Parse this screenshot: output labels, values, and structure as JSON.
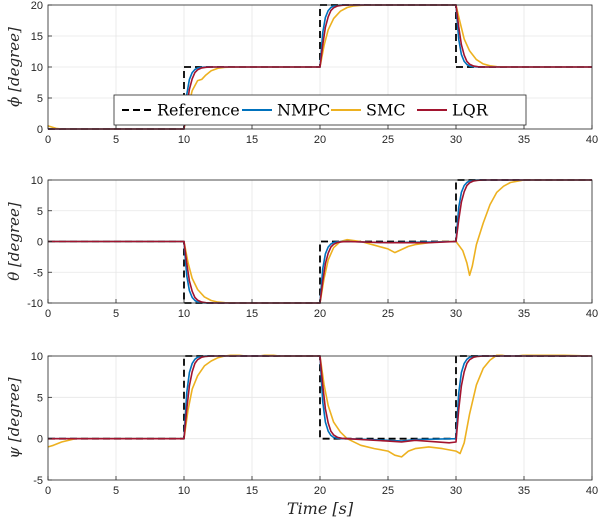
{
  "chart_data": [
    {
      "type": "line",
      "ylabel": "ϕ [degree]",
      "xlabel": "",
      "xlim": [
        0,
        40
      ],
      "ylim": [
        0,
        20
      ],
      "xticks": [
        0,
        5,
        10,
        15,
        20,
        25,
        30,
        35,
        40
      ],
      "yticks": [
        0,
        5,
        10,
        15,
        20
      ],
      "grid": true,
      "legend": {
        "placement": "bottom-center",
        "entries": [
          "Reference",
          "NMPC",
          "SMC",
          "LQR"
        ]
      },
      "series": [
        {
          "name": "Reference",
          "color": "#000000",
          "dash": true,
          "x": [
            0,
            10,
            10,
            20,
            20,
            30,
            30,
            40
          ],
          "y": [
            0,
            0,
            10,
            10,
            20,
            20,
            10,
            10
          ]
        },
        {
          "name": "NMPC",
          "color": "#0072BD",
          "x": [
            0,
            10,
            10.2,
            10.4,
            10.6,
            10.8,
            11,
            11.3,
            11.6,
            12,
            20,
            20.2,
            20.4,
            20.6,
            20.8,
            21,
            21.3,
            21.6,
            22,
            30,
            30.2,
            30.4,
            30.6,
            30.8,
            31,
            31.3,
            31.6,
            32,
            40
          ],
          "y": [
            0,
            0,
            5.5,
            8,
            9.1,
            9.6,
            9.85,
            9.95,
            10,
            10,
            10,
            15.5,
            18,
            19.1,
            19.6,
            19.85,
            19.95,
            20,
            20,
            20,
            14.5,
            12,
            10.9,
            10.4,
            10.15,
            10.05,
            10,
            10,
            10
          ]
        },
        {
          "name": "LQR",
          "color": "#A2142F",
          "x": [
            0,
            10,
            10.2,
            10.4,
            10.6,
            10.8,
            11,
            11.3,
            11.6,
            12,
            20,
            20.2,
            20.4,
            20.6,
            20.8,
            21,
            21.3,
            21.6,
            22,
            30,
            30.2,
            30.4,
            30.6,
            30.8,
            31,
            31.3,
            31.6,
            32,
            40
          ],
          "y": [
            0,
            0,
            3.5,
            6.4,
            8.1,
            9.1,
            9.55,
            9.85,
            9.95,
            10,
            10,
            13.5,
            16.4,
            18.1,
            19.1,
            19.55,
            19.85,
            19.95,
            20,
            20,
            16.5,
            13.6,
            11.9,
            10.9,
            10.45,
            10.15,
            10.05,
            10,
            10
          ]
        },
        {
          "name": "SMC",
          "color": "#EDB120",
          "x": [
            0,
            0.3,
            0.6,
            1,
            10,
            10.3,
            10.6,
            11,
            11.3,
            11.6,
            12,
            12.5,
            13,
            14,
            15,
            20,
            20.3,
            20.6,
            21,
            21.5,
            22,
            22.5,
            23,
            24,
            30,
            30.3,
            30.6,
            31,
            31.5,
            32,
            32.5,
            33,
            34,
            40
          ],
          "y": [
            0.5,
            0.3,
            0.1,
            0,
            0,
            3.5,
            6.2,
            7.8,
            8,
            8.7,
            9.4,
            9.8,
            9.95,
            10,
            10,
            10,
            13.5,
            16,
            17.8,
            19,
            19.6,
            19.85,
            19.95,
            20,
            20,
            17.2,
            14.5,
            12.6,
            11.2,
            10.5,
            10.2,
            10.05,
            10,
            10
          ]
        }
      ]
    },
    {
      "type": "line",
      "ylabel": "θ [degree]",
      "xlabel": "",
      "xlim": [
        0,
        40
      ],
      "ylim": [
        -10,
        10
      ],
      "xticks": [
        0,
        5,
        10,
        15,
        20,
        25,
        30,
        35,
        40
      ],
      "yticks": [
        -10,
        -5,
        0,
        5,
        10
      ],
      "grid": true,
      "series": [
        {
          "name": "Reference",
          "color": "#000000",
          "dash": true,
          "x": [
            0,
            10,
            10,
            20,
            20,
            30,
            30,
            40
          ],
          "y": [
            0,
            0,
            -10,
            -10,
            0,
            0,
            10,
            10
          ]
        },
        {
          "name": "NMPC",
          "color": "#0072BD",
          "x": [
            0,
            10,
            10.2,
            10.4,
            10.6,
            10.8,
            11,
            11.3,
            11.6,
            12,
            20,
            20.2,
            20.4,
            20.6,
            20.8,
            21,
            21.3,
            21.6,
            22,
            25,
            28,
            30,
            30.2,
            30.4,
            30.6,
            30.8,
            31,
            31.3,
            31.6,
            32,
            40
          ],
          "y": [
            0,
            0,
            -5.5,
            -8,
            -9.1,
            -9.6,
            -9.85,
            -9.95,
            -10,
            -10,
            -10,
            -4.5,
            -2,
            -0.9,
            -0.4,
            -0.15,
            -0.05,
            0,
            0,
            -0.2,
            -0.1,
            0,
            5.5,
            8,
            9.1,
            9.6,
            9.85,
            9.95,
            10,
            10,
            10
          ]
        },
        {
          "name": "LQR",
          "color": "#A2142F",
          "x": [
            0,
            10,
            10.2,
            10.4,
            10.6,
            10.8,
            11,
            11.3,
            11.6,
            12,
            20,
            20.2,
            20.4,
            20.6,
            20.8,
            21,
            21.3,
            21.6,
            22,
            25,
            28,
            30,
            30.2,
            30.4,
            30.6,
            30.8,
            31,
            31.3,
            31.6,
            32,
            40
          ],
          "y": [
            0,
            0,
            -3.5,
            -6.4,
            -8.1,
            -9.1,
            -9.55,
            -9.85,
            -9.95,
            -10,
            -10,
            -6.5,
            -3.6,
            -1.9,
            -0.9,
            -0.45,
            -0.15,
            -0.05,
            0,
            -0.2,
            -0.2,
            0,
            3.5,
            6.4,
            8.1,
            9.1,
            9.55,
            9.85,
            9.95,
            10,
            10
          ]
        },
        {
          "name": "SMC",
          "color": "#EDB120",
          "x": [
            0,
            10,
            10.3,
            10.6,
            11,
            11.5,
            12,
            12.5,
            13,
            14,
            20,
            20.3,
            20.6,
            21,
            21.5,
            22,
            23,
            24,
            25,
            25.5,
            26,
            26.5,
            27,
            28,
            29,
            30,
            30.5,
            30.8,
            31,
            31.2,
            31.5,
            32,
            32.5,
            33,
            33.5,
            34,
            35,
            40
          ],
          "y": [
            0,
            0,
            -3.5,
            -6,
            -7.8,
            -9,
            -9.6,
            -9.85,
            -9.95,
            -10,
            -10,
            -6,
            -3,
            -1,
            0,
            0.3,
            0,
            -0.6,
            -1.2,
            -1.8,
            -1.3,
            -0.8,
            -0.5,
            -0.2,
            0,
            0,
            -1.5,
            -3.5,
            -5.5,
            -4,
            -0.5,
            3,
            6,
            8,
            9,
            9.6,
            10,
            10
          ]
        }
      ]
    },
    {
      "type": "line",
      "ylabel": "ψ [degree]",
      "xlabel": "Time [s]",
      "xlim": [
        0,
        40
      ],
      "ylim": [
        -5,
        10
      ],
      "xticks": [
        0,
        5,
        10,
        15,
        20,
        25,
        30,
        35,
        40
      ],
      "yticks": [
        -5,
        0,
        5,
        10
      ],
      "grid": true,
      "series": [
        {
          "name": "Reference",
          "color": "#000000",
          "dash": true,
          "x": [
            0,
            10,
            10,
            20,
            20,
            30,
            30,
            40
          ],
          "y": [
            0,
            0,
            10,
            10,
            0,
            0,
            10,
            10
          ]
        },
        {
          "name": "NMPC",
          "color": "#0072BD",
          "x": [
            0,
            10,
            10.2,
            10.4,
            10.6,
            10.8,
            11,
            11.3,
            11.6,
            12,
            20,
            20.2,
            20.4,
            20.6,
            20.8,
            21,
            21.3,
            21.6,
            22,
            25,
            26,
            27,
            30,
            30.2,
            30.4,
            30.6,
            30.8,
            31,
            31.3,
            31.6,
            32,
            40
          ],
          "y": [
            0,
            0,
            5.5,
            8,
            9.1,
            9.6,
            9.85,
            9.95,
            10,
            10,
            10,
            4.5,
            2,
            0.9,
            0.4,
            0.15,
            0.05,
            0,
            0,
            -0.2,
            -0.3,
            -0.1,
            0,
            5.5,
            8,
            9.1,
            9.6,
            9.85,
            9.95,
            10,
            10,
            10
          ]
        },
        {
          "name": "LQR",
          "color": "#A2142F",
          "x": [
            0,
            10,
            10.2,
            10.4,
            10.6,
            10.8,
            11,
            11.3,
            11.6,
            12,
            20,
            20.2,
            20.4,
            20.6,
            20.8,
            21,
            21.3,
            21.6,
            22,
            25,
            26,
            27,
            29.5,
            30,
            30.2,
            30.4,
            30.6,
            30.8,
            31,
            31.3,
            31.6,
            32,
            40
          ],
          "y": [
            0,
            0,
            3.5,
            6.4,
            8.1,
            9.1,
            9.55,
            9.85,
            9.95,
            10,
            10,
            6.5,
            3.6,
            1.9,
            0.9,
            0.45,
            0.15,
            0.05,
            0,
            -0.3,
            -0.4,
            -0.2,
            -0.5,
            -0.4,
            3.5,
            6.4,
            8.1,
            9.1,
            9.55,
            9.85,
            9.95,
            10,
            10
          ]
        },
        {
          "name": "SMC",
          "color": "#EDB120",
          "x": [
            0,
            0.4,
            1,
            2,
            10,
            10.3,
            10.6,
            11,
            11.5,
            12,
            12.5,
            13,
            14,
            15,
            16,
            17,
            20,
            20.3,
            20.6,
            21,
            21.5,
            22,
            23,
            24,
            25,
            25.5,
            26,
            26.5,
            27,
            28,
            29,
            30,
            30.3,
            30.6,
            31,
            31.5,
            32,
            32.5,
            33,
            34,
            35,
            40
          ],
          "y": [
            -1,
            -0.8,
            -0.4,
            0,
            0,
            3.5,
            6,
            7.6,
            8.8,
            9.4,
            9.8,
            10,
            10.2,
            10.4,
            10.2,
            10,
            10,
            6.5,
            4,
            2,
            0.8,
            0,
            -0.8,
            -1.2,
            -1.5,
            -2,
            -2.2,
            -1.5,
            -1.2,
            -1,
            -1.2,
            -1.5,
            -1.8,
            -0.5,
            3,
            6.5,
            8.5,
            9.5,
            10.1,
            10.4,
            10.2,
            10
          ]
        }
      ]
    }
  ]
}
